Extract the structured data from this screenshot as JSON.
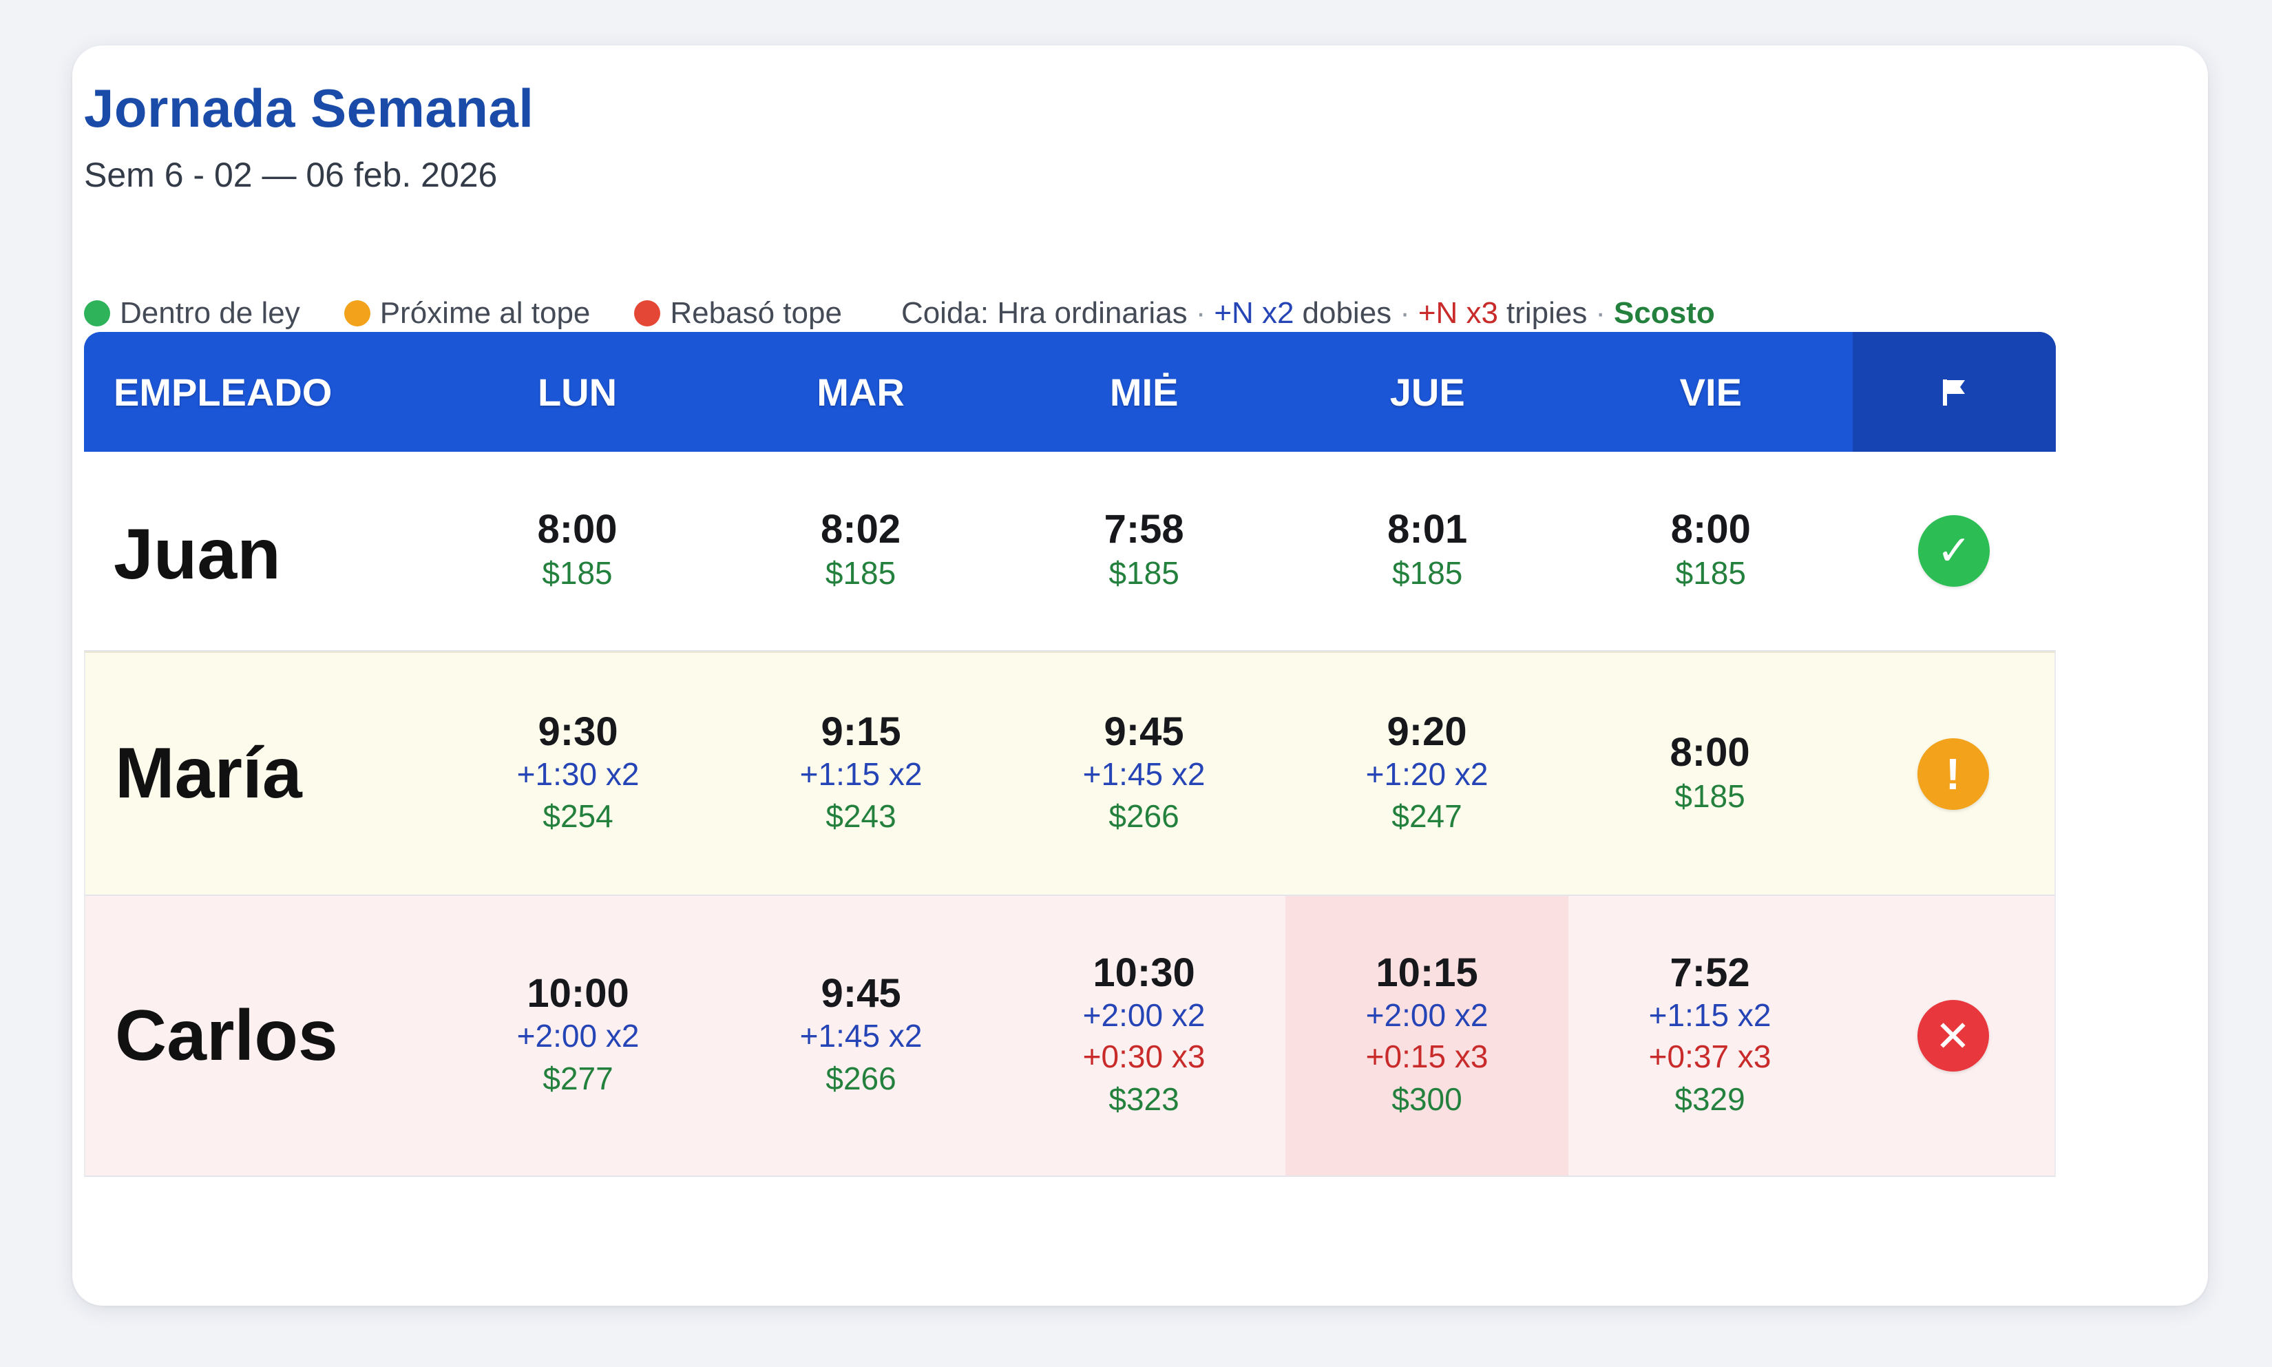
{
  "title": "Jornada Semanal",
  "subtitle": "Sem 6 - 02 — 06 feb. 2026",
  "legend": {
    "green_label": "Dentro de ley",
    "orange_label": "Próxime al tope",
    "red_label": "Rebasó tope",
    "key_label": "Coida: Hra ordinarias",
    "separator": "·",
    "x2_code": "+N x2",
    "x2_word": "dobies",
    "x3_code": "+N x3",
    "x3_word": "tripies",
    "cost_label": "Scosto",
    "colors": {
      "green": "#2fb35a",
      "orange": "#f2a31b",
      "red": "#e44735"
    }
  },
  "table": {
    "header": {
      "employee": "EMPLEADO",
      "days": [
        "LUN",
        "MAR",
        "MIĖ",
        "JUE",
        "VIE"
      ],
      "flag_icon": "flag-icon"
    },
    "rows": [
      {
        "name": "Juan",
        "status": "ok",
        "status_icon": "check-icon",
        "status_symbol": "✓",
        "cells": [
          {
            "hours": "8:00",
            "cost": "$185"
          },
          {
            "hours": "8:02",
            "cost": "$185"
          },
          {
            "hours": "7:58",
            "cost": "$185"
          },
          {
            "hours": "8:01",
            "cost": "$185"
          },
          {
            "hours": "8:00",
            "cost": "$185"
          }
        ]
      },
      {
        "name": "María",
        "status": "warning",
        "status_icon": "exclamation-icon",
        "status_symbol": "!",
        "cells": [
          {
            "hours": "9:30",
            "x2": "+1:30 x2",
            "cost": "$254"
          },
          {
            "hours": "9:15",
            "x2": "+1:15 x2",
            "cost": "$243"
          },
          {
            "hours": "9:45",
            "x2": "+1:45 x2",
            "cost": "$266"
          },
          {
            "hours": "9:20",
            "x2": "+1:20 x2",
            "cost": "$247"
          },
          {
            "hours": "8:00",
            "cost": "$185"
          }
        ]
      },
      {
        "name": "Carlos",
        "status": "exceeded",
        "status_icon": "x-icon",
        "status_symbol": "✕",
        "cells": [
          {
            "hours": "10:00",
            "x2": "+2:00 x2",
            "cost": "$277"
          },
          {
            "hours": "9:45",
            "x2": "+1:45 x2",
            "cost": "$266"
          },
          {
            "hours": "10:30",
            "x2": "+2:00 x2",
            "x3": "+0:30 x3",
            "cost": "$323"
          },
          {
            "hours": "10:15",
            "x2": "+2:00 x2",
            "x3": "+0:15 x3",
            "cost": "$300",
            "highlight": true
          },
          {
            "hours": "7:52",
            "x2": "+1:15 x2",
            "x3": "+0:37 x3",
            "cost": "$329"
          }
        ]
      }
    ]
  }
}
